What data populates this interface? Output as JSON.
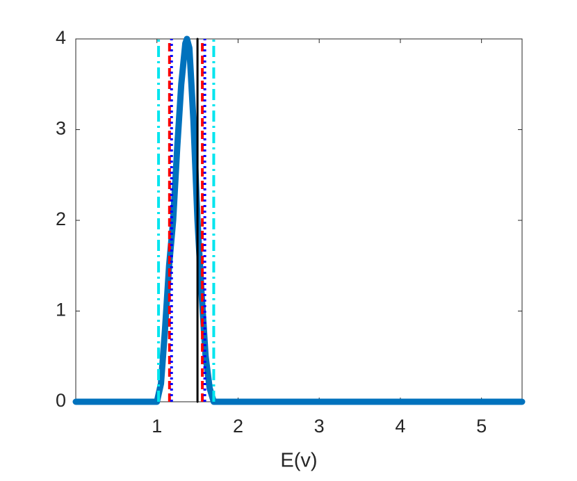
{
  "chart_data": {
    "type": "line",
    "x_label": "E(v)",
    "xlim": [
      0,
      5.5
    ],
    "xticks": [
      1,
      2,
      3,
      4,
      5
    ],
    "ylim": [
      0,
      4
    ],
    "yticks": [
      0,
      1,
      2,
      3,
      4
    ],
    "grid": false,
    "series": [
      {
        "color": "#0072bd",
        "style": "solid",
        "width": 9,
        "x": [
          0,
          0.5,
          0.95,
          1.0,
          1.05,
          1.1,
          1.15,
          1.2,
          1.25,
          1.3,
          1.35,
          1.37,
          1.4,
          1.45,
          1.5,
          1.55,
          1.6,
          1.65,
          1.7,
          1.75,
          2,
          3,
          4,
          5,
          5.5
        ],
        "values": [
          0,
          0,
          0,
          0,
          0.2,
          0.8,
          1.5,
          2.0,
          2.8,
          3.5,
          3.95,
          4.0,
          3.9,
          3.1,
          2.0,
          1.2,
          0.5,
          0.15,
          0,
          0,
          0,
          0,
          0,
          0,
          0
        ]
      },
      {
        "color": "#00e5ee",
        "style": "dashdot",
        "width": 4,
        "x": [
          1.02,
          1.02
        ],
        "values": [
          0,
          4
        ]
      },
      {
        "color": "#00e5ee",
        "style": "dashdot",
        "width": 4,
        "x": [
          1.7,
          1.7
        ],
        "values": [
          0,
          4
        ]
      },
      {
        "color": "#ff0000",
        "style": "dashed",
        "width": 4,
        "x": [
          1.155,
          1.155
        ],
        "values": [
          0,
          4
        ]
      },
      {
        "color": "#ff0000",
        "style": "dashed",
        "width": 4,
        "x": [
          1.56,
          1.56
        ],
        "values": [
          0,
          4
        ]
      },
      {
        "color": "#0000ff",
        "style": "dotted",
        "width": 4,
        "x": [
          1.18,
          1.18
        ],
        "values": [
          0,
          4
        ]
      },
      {
        "color": "#0000ff",
        "style": "dotted",
        "width": 4,
        "x": [
          1.59,
          1.59
        ],
        "values": [
          0,
          4
        ]
      },
      {
        "color": "#000000",
        "style": "solid",
        "width": 3,
        "x": [
          1.5,
          1.5
        ],
        "values": [
          0,
          4
        ]
      }
    ]
  }
}
